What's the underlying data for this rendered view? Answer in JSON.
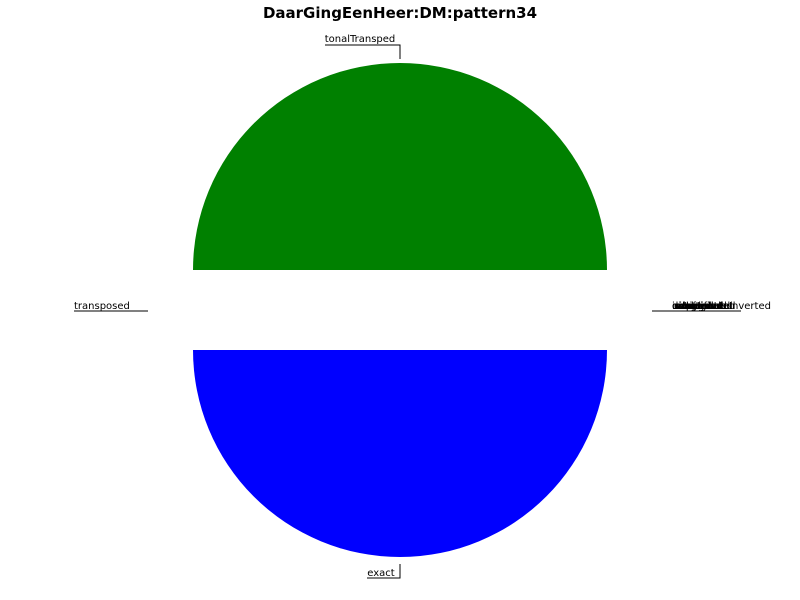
{
  "chart_data": {
    "type": "pie",
    "title": "DaarGingEenHeer:DM:pattern34",
    "legend": "none",
    "slices": [
      {
        "label": "tonalTransped",
        "value": 0.5,
        "color": "#008000"
      },
      {
        "label": "transposed",
        "value": 0,
        "color": "#ff0000"
      },
      {
        "label": "exact",
        "value": 0.5,
        "color": "#0000ff"
      },
      {
        "label": "",
        "value": 0,
        "color": "#000000"
      }
    ],
    "right_labels": [
      "inverted",
      "retrograde",
      "retrogradeInverted",
      "augmented",
      "diminished",
      "simplified",
      "elaborated",
      "shifted",
      "compressed",
      "expanded",
      "other"
    ]
  }
}
